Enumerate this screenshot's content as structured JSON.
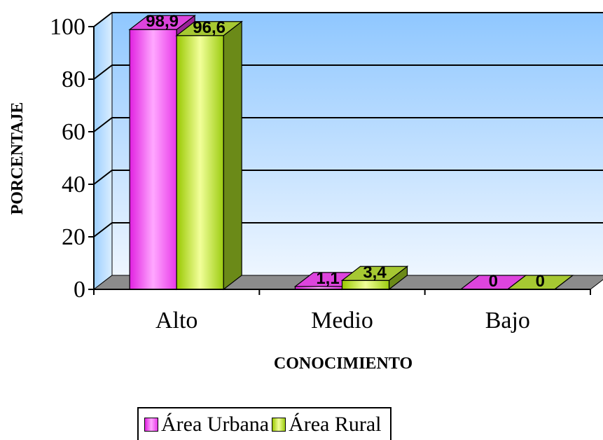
{
  "chart_data": {
    "type": "bar",
    "categories": [
      "Alto",
      "Medio",
      "Bajo"
    ],
    "series": [
      {
        "name": "Área Urbana",
        "values": [
          98.9,
          1.1,
          0
        ],
        "labels": [
          "98,9",
          "1,1",
          "0"
        ],
        "color": "#ff33ff"
      },
      {
        "name": "Área Rural",
        "values": [
          96.6,
          3.4,
          0
        ],
        "labels": [
          "96,6",
          "3,4",
          "0"
        ],
        "color": "#99cc00"
      }
    ],
    "xlabel": "CONOCIMIENTO",
    "ylabel": "PORCENTAJE",
    "ylim": [
      0,
      100
    ],
    "yticks": [
      "0",
      "20",
      "40",
      "60",
      "80",
      "100"
    ],
    "grid": true,
    "legend_position": "bottom",
    "style": "3d"
  }
}
